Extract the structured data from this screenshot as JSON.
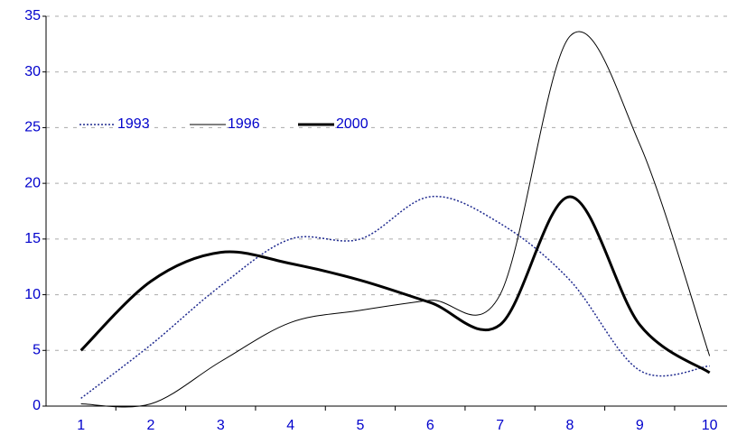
{
  "chart_data": {
    "type": "line",
    "x": [
      1,
      2,
      3,
      4,
      5,
      6,
      7,
      8,
      9,
      10
    ],
    "xlim": [
      0.5,
      10.25
    ],
    "ylim": [
      0,
      35
    ],
    "yticks": [
      0,
      5,
      10,
      15,
      20,
      25,
      30,
      35
    ],
    "grid": true,
    "legend": "upper left",
    "series": [
      {
        "name": "1993",
        "color": "#1f2a8f",
        "style": "dotted",
        "width": 1.5,
        "values": [
          0.7,
          5.5,
          10.8,
          15,
          15,
          18.8,
          16.4,
          11.3,
          3.2,
          3.6
        ]
      },
      {
        "name": "1996",
        "color": "#000000",
        "style": "solid",
        "width": 1,
        "values": [
          0.2,
          0.2,
          4,
          7.5,
          8.6,
          9.5,
          10,
          33.2,
          23.5,
          4.5
        ]
      },
      {
        "name": "2000",
        "color": "#000000",
        "style": "solid",
        "width": 3,
        "values": [
          5,
          11.2,
          13.8,
          12.8,
          11.3,
          9.3,
          7.3,
          18.8,
          7.3,
          3
        ]
      }
    ]
  }
}
